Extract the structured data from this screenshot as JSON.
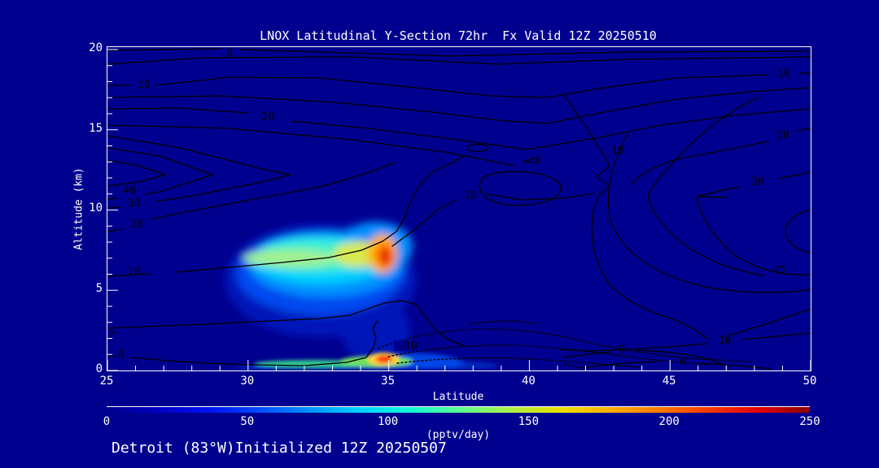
{
  "window": {
    "background_color": "#00008F",
    "foreground_color": "#FFFFFF",
    "contour_line_color": "#000000"
  },
  "title": {
    "text": "LNOX Latitudinal Y-Section 72hr  Fx Valid 12Z 20250510"
  },
  "caption": {
    "text": "Detroit (83°W)Initialized 12Z 20250507"
  },
  "x_axis": {
    "label": "Latitude",
    "min": 25,
    "max": 50,
    "major_ticks": [
      25,
      30,
      35,
      40,
      45,
      50
    ],
    "minor_tick_step": 1
  },
  "y_axis": {
    "label": "Altitude (km)",
    "min": 0,
    "max": 20,
    "major_ticks": [
      0,
      5,
      10,
      15,
      20
    ],
    "minor_tick_step": 1
  },
  "colorbar": {
    "units_label": "(pptv/day)",
    "min": 0,
    "max": 250,
    "tick_labels": [
      0,
      50,
      100,
      150,
      200,
      250
    ],
    "gradient_stops": [
      "#00008F",
      "#0000C0",
      "#0010F0",
      "#0048FF",
      "#0090FF",
      "#00D0FF",
      "#10F8D8",
      "#58FF90",
      "#A8F048",
      "#E8E000",
      "#FFB000",
      "#FF7800",
      "#FF3800",
      "#E00000",
      "#8B0000"
    ]
  },
  "chart_data": {
    "type": "heatmap",
    "subtype": "latitude-altitude cross-section: filled color contours of LNOX tendency with overlaid black line contours",
    "title": "LNOX Latitudinal Y-Section 72hr  Fx Valid 12Z 20250510",
    "xlabel": "Latitude",
    "ylabel": "Altitude (km)",
    "xlim": [
      25,
      50
    ],
    "ylim": [
      0,
      20
    ],
    "fill_units": "pptv/day",
    "fill_range": [
      0,
      250
    ],
    "line_contour_levels_visible": [
      0,
      10,
      20,
      30,
      40
    ],
    "dashed_negative_level": -10,
    "filled_features": [
      {
        "name": "mid-level plume",
        "lat_range": [
          29.5,
          36.5
        ],
        "alt_km_range": [
          4,
          9.5
        ],
        "peak": {
          "lat": 35,
          "alt_km": 7.5,
          "value_pptv_day_approx": 200
        },
        "body_value_pptv_day_approx": 100
      },
      {
        "name": "boundary-layer plume",
        "lat_range": [
          29,
          37.5
        ],
        "alt_km_range": [
          0,
          1.5
        ],
        "peak": {
          "lat": 35.2,
          "alt_km": 0.5,
          "value_pptv_day_approx": 230
        },
        "body_value_pptv_day_approx": 100
      }
    ],
    "line_contour_maxima": [
      {
        "lat_approx": 25.5,
        "alt_km_approx": 12,
        "enclosing_label": 40
      },
      {
        "lat_approx": 48.5,
        "alt_km_approx": 9,
        "enclosing_label": 30
      }
    ],
    "contour_labels": [
      {
        "text": "0",
        "lat": 29.34,
        "alt_km": 19.75
      },
      {
        "text": "10",
        "lat": 26.3,
        "alt_km": 17.77
      },
      {
        "text": "20",
        "lat": 30.7,
        "alt_km": 15.8
      },
      {
        "text": "10",
        "lat": 49.05,
        "alt_km": 18.48
      },
      {
        "text": "20",
        "lat": 49.02,
        "alt_km": 14.63
      },
      {
        "text": "30",
        "lat": 48.12,
        "alt_km": 11.75
      },
      {
        "text": "40",
        "lat": 25.78,
        "alt_km": 11.19
      },
      {
        "text": "30",
        "lat": 25.95,
        "alt_km": 10.38
      },
      {
        "text": "20",
        "lat": 26.04,
        "alt_km": 9.1
      },
      {
        "text": "10",
        "lat": 25.95,
        "alt_km": 6.13
      },
      {
        "text": "10",
        "lat": 37.91,
        "alt_km": 10.89
      },
      {
        "text": "10",
        "lat": 43.14,
        "alt_km": 13.67
      },
      {
        "text": "10",
        "lat": 46.96,
        "alt_km": 1.82
      },
      {
        "text": "0",
        "lat": 43.29,
        "alt_km": 1.27
      },
      {
        "text": "0",
        "lat": 45.46,
        "alt_km": 0.51
      },
      {
        "text": "0",
        "lat": 25.49,
        "alt_km": 0.96
      },
      {
        "text": "-10",
        "lat": 35.68,
        "alt_km": 1.52
      },
      {
        "text": ">",
        "lat": 25.17,
        "alt_km": 2.33
      }
    ]
  }
}
